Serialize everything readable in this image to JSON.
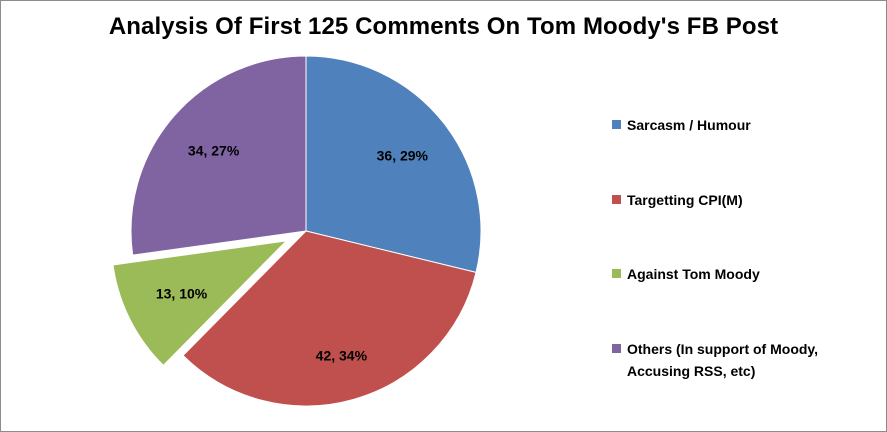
{
  "chart_data": {
    "type": "pie",
    "title": "Analysis Of First 125 Comments On Tom Moody's FB Post",
    "legend_position": "right",
    "slices": [
      {
        "name": "Sarcasm / Humour",
        "value": 36,
        "percent": 29,
        "label": "36, 29%",
        "color": "#4f81bd",
        "exploded": false
      },
      {
        "name": "Targetting CPI(M)",
        "value": 42,
        "percent": 34,
        "label": "42, 34%",
        "color": "#c0504d",
        "exploded": false
      },
      {
        "name": "Against Tom Moody",
        "value": 13,
        "percent": 10,
        "label": "13, 10%",
        "color": "#9bbb59",
        "exploded": true
      },
      {
        "name": "Others (In support of Moody, Accusing RSS, etc)",
        "value": 34,
        "percent": 27,
        "label": "34, 27%",
        "color": "#8064a2",
        "exploded": false
      }
    ],
    "legend": [
      "Sarcasm / Humour",
      "Targetting CPI(M)",
      "Against Tom Moody",
      "Others (In support of Moody, Accusing RSS, etc)"
    ]
  }
}
